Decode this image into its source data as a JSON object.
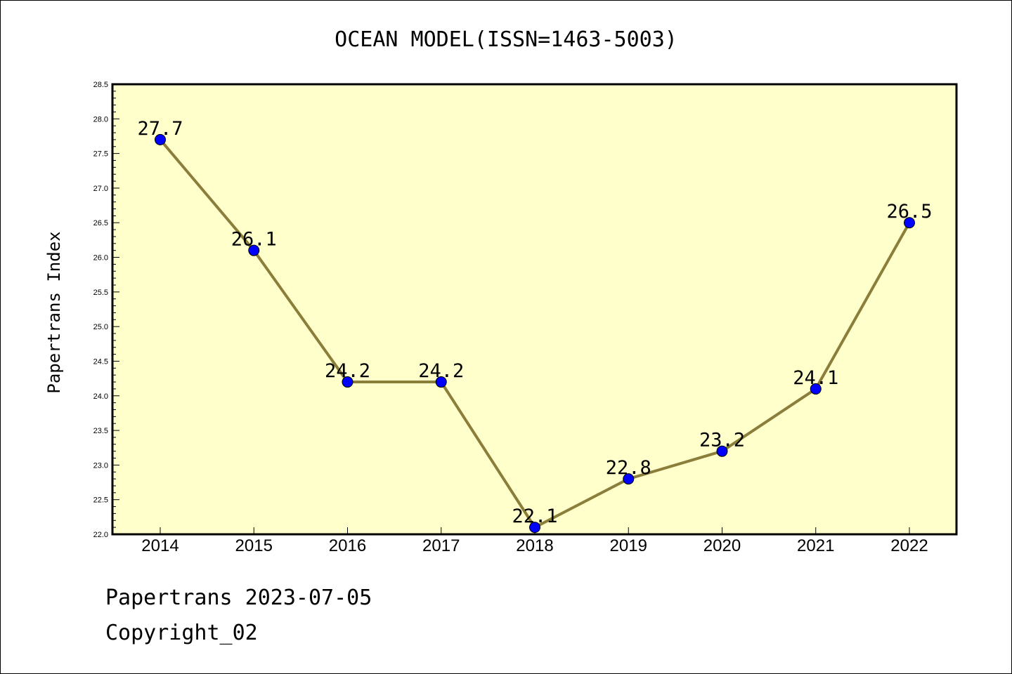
{
  "chart_data": {
    "type": "line",
    "title": "OCEAN MODEL(ISSN=1463-5003)",
    "xlabel": "",
    "ylabel": "Papertrans Index",
    "categories": [
      "2014",
      "2015",
      "2016",
      "2017",
      "2018",
      "2019",
      "2020",
      "2021",
      "2022"
    ],
    "series": [
      {
        "values": [
          27.7,
          26.1,
          24.2,
          24.2,
          22.1,
          22.8,
          23.2,
          24.1,
          26.5
        ]
      }
    ],
    "data_labels": [
      "27.7",
      "26.1",
      "24.2",
      "24.2",
      "22.1",
      "22.8",
      "23.2",
      "24.1",
      "26.5"
    ],
    "ylim": [
      22.0,
      28.5
    ],
    "yticks": [
      "22.0",
      "22.5",
      "23.0",
      "23.5",
      "24.0",
      "24.5",
      "25.0",
      "25.5",
      "26.0",
      "26.5",
      "27.0",
      "27.5",
      "28.0",
      "28.5"
    ],
    "grid": false,
    "legend": "none",
    "colors": {
      "plot_background": "#ffffcc",
      "line": "#8b7d3a",
      "marker": "#0000ff"
    }
  },
  "footer": {
    "line1": "Papertrans 2023-07-05",
    "line2": "Copyright_02"
  }
}
